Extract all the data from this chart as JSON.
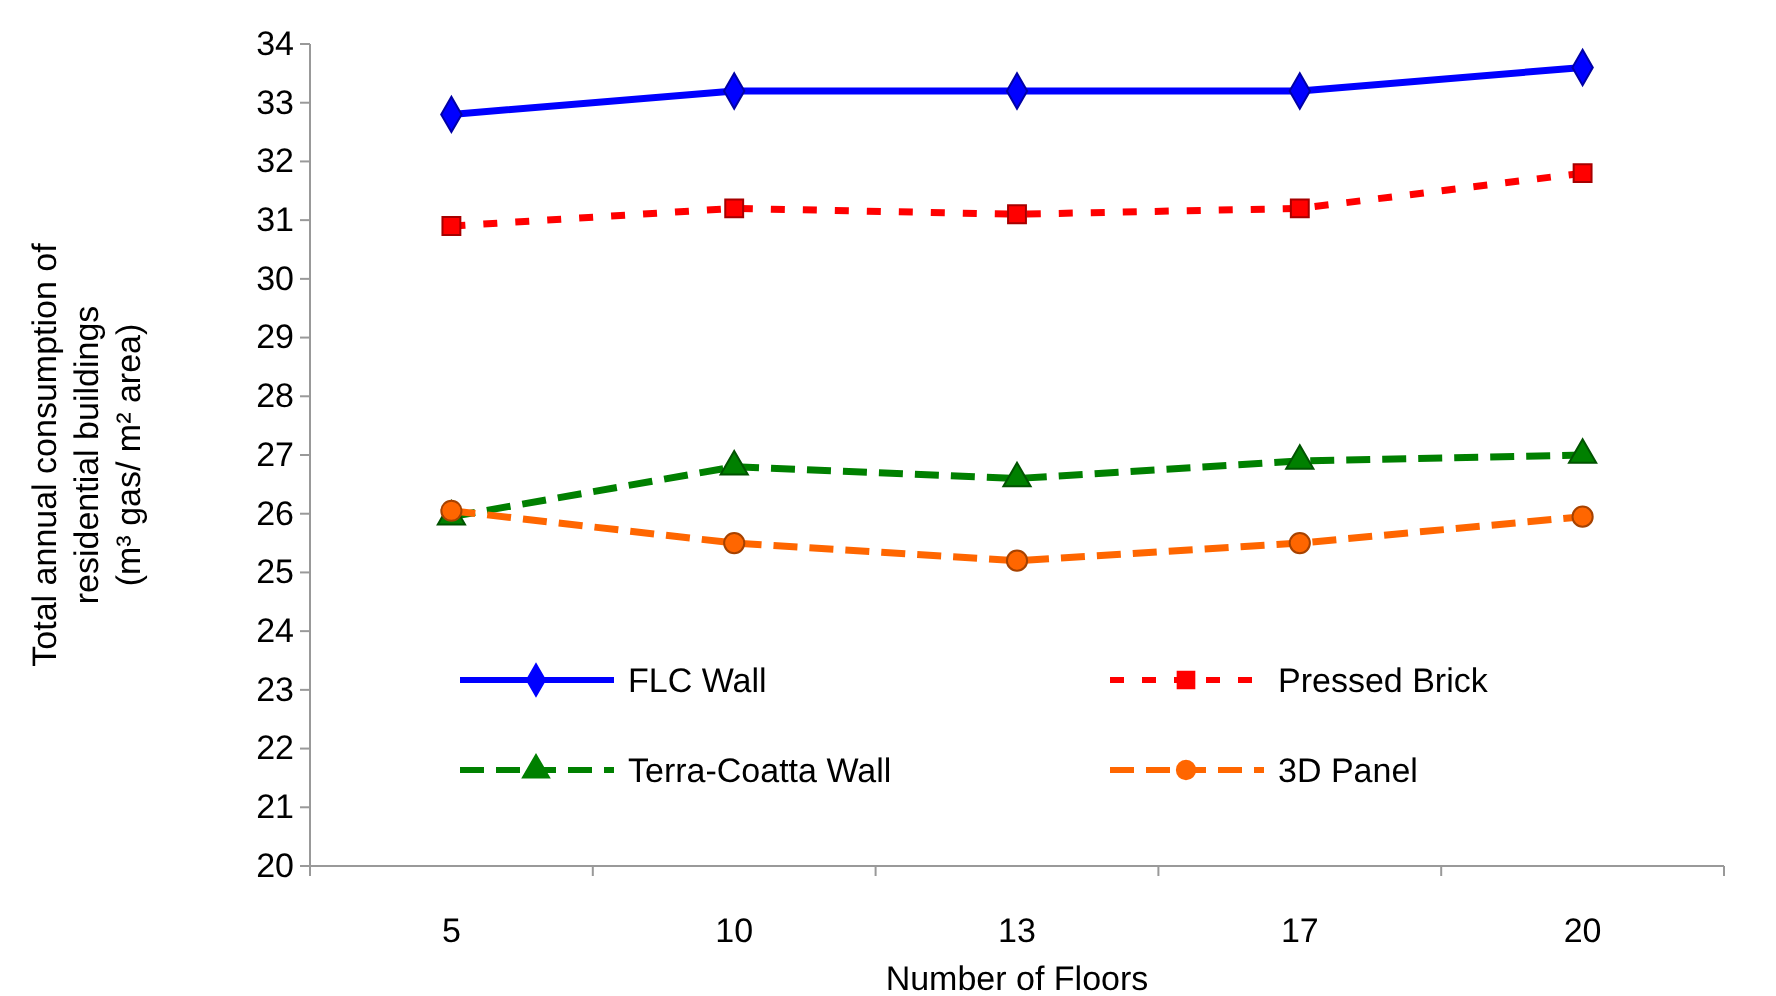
{
  "chart_data": {
    "type": "line",
    "ylabel": "Total annual consumption of residential buildings (m³ gas/ m² area)",
    "xlabel": "Number of Floors",
    "categories": [
      "5",
      "10",
      "13",
      "17",
      "20"
    ],
    "ylim": [
      20,
      34
    ],
    "yticks": [
      20,
      21,
      22,
      23,
      24,
      25,
      26,
      27,
      28,
      29,
      30,
      31,
      32,
      33,
      34
    ],
    "grid": false,
    "legend": "bottom",
    "series": [
      {
        "name": "FLC Wall",
        "color": "#0000ff",
        "marker": "diamond",
        "line_style": "solid",
        "values": [
          32.8,
          33.2,
          33.2,
          33.2,
          33.6
        ]
      },
      {
        "name": "Pressed Brick",
        "color": "#ff0000",
        "marker": "square",
        "line_style": "dotted",
        "values": [
          30.9,
          31.2,
          31.1,
          31.2,
          31.8
        ]
      },
      {
        "name": "Terra-Coatta Wall",
        "color": "#008000",
        "marker": "triangle",
        "line_style": "dashed",
        "values": [
          25.95,
          26.8,
          26.6,
          26.9,
          27.0
        ]
      },
      {
        "name": "3D Panel",
        "color": "#ff6600",
        "marker": "circle",
        "line_style": "dashed",
        "values": [
          26.05,
          25.5,
          25.2,
          25.5,
          25.95
        ]
      }
    ]
  }
}
